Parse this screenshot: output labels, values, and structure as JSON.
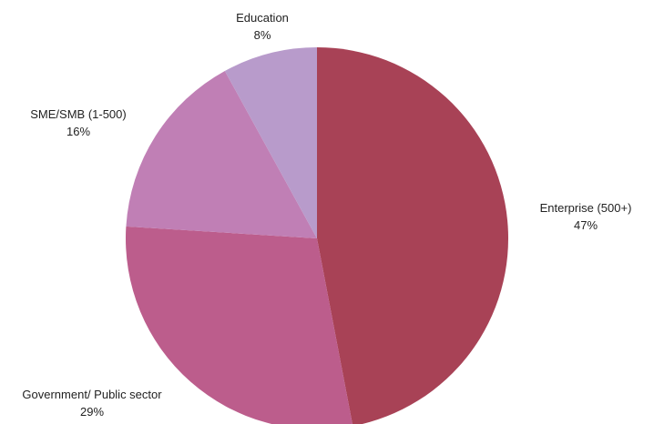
{
  "chart_data": {
    "type": "pie",
    "title": "",
    "start_angle_deg": 0,
    "direction": "clockwise",
    "slices": [
      {
        "label": "Enterprise (500+)",
        "value": 47,
        "display": "47%",
        "color": "#a84256"
      },
      {
        "label": "Government/ Public sector",
        "value": 29,
        "display": "29%",
        "color": "#bc5d8c"
      },
      {
        "label": "SME/SMB (1-500)",
        "value": 16,
        "display": "16%",
        "color": "#c07fb5"
      },
      {
        "label": "Education",
        "value": 8,
        "display": "8%",
        "color": "#b89bcb"
      }
    ]
  }
}
